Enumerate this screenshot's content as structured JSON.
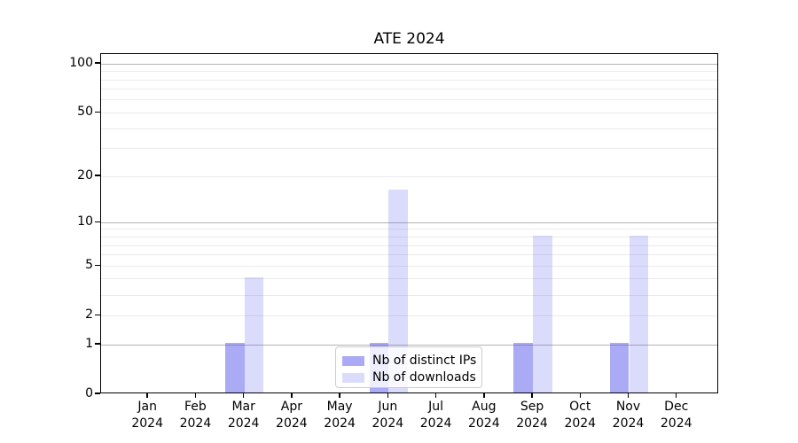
{
  "chart_data": {
    "type": "bar",
    "title": "ATE 2024",
    "categories": [
      "Jan",
      "Feb",
      "Mar",
      "Apr",
      "May",
      "Jun",
      "Jul",
      "Aug",
      "Sep",
      "Oct",
      "Nov",
      "Dec"
    ],
    "tick_year": "2024",
    "series": [
      {
        "name": "Nb of distinct IPs",
        "values": [
          0,
          0,
          1,
          0,
          0,
          1,
          0,
          0,
          1,
          0,
          1,
          0
        ],
        "color": "rgba(85,85,235,0.50)"
      },
      {
        "name": "Nb of downloads",
        "values": [
          0,
          0,
          4,
          0,
          0,
          16,
          0,
          0,
          8,
          0,
          8,
          0
        ],
        "color": "rgba(85,85,235,0.21)"
      }
    ],
    "yscale": "log10(1+value)",
    "yticks": [
      0,
      1,
      2,
      5,
      10,
      20,
      50,
      100
    ],
    "ylim": [
      0,
      115
    ],
    "xlabel": "",
    "ylabel": "",
    "grid_on": true,
    "gridlines": {
      "major": [
        1,
        10,
        100
      ],
      "minor": [
        2,
        3,
        4,
        5,
        6,
        7,
        8,
        9,
        20,
        30,
        40,
        50,
        60,
        70,
        80,
        90
      ]
    },
    "legend_position": "lower center",
    "colors": {
      "bar_distinct_ips": "#aaaaf5",
      "bar_downloads": "#dcdcfb",
      "gridline_major": "#b3b3b3",
      "gridline_minor": "#ebebeb",
      "axis": "#000000",
      "background": "#ffffff",
      "legend_border": "#cccccc"
    }
  }
}
